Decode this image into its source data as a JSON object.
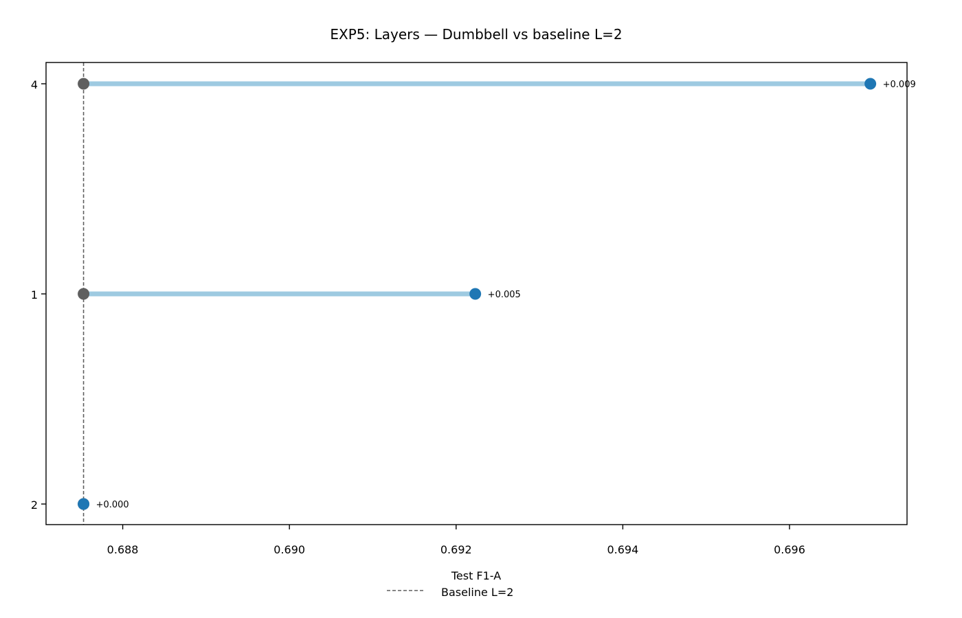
{
  "chart_data": {
    "type": "dumbbell",
    "title": "EXP5: Layers — Dumbbell vs baseline L=2",
    "xlabel": "Test F1-A",
    "ylabel": "",
    "xlim": [
      0.68708,
      0.69741
    ],
    "x_ticks": [
      "0.688",
      "0.690",
      "0.692",
      "0.694",
      "0.696"
    ],
    "x_tick_values": [
      0.688,
      0.69,
      0.692,
      0.694,
      0.696
    ],
    "categories": [
      "2",
      "1",
      "4"
    ],
    "baseline": {
      "name": "Baseline L=2",
      "value": 0.68753
    },
    "values": [
      0.68753,
      0.69223,
      0.69697
    ],
    "deltas": [
      "+0.000",
      "+0.005",
      "+0.009"
    ],
    "grid": false,
    "legend_position": "bottom-center",
    "colors": {
      "baseline_marker": "#5f5f5f",
      "value_marker": "#1f77b4",
      "connector": "#9ecae1",
      "baseline_line": "#5f5f5f"
    }
  }
}
